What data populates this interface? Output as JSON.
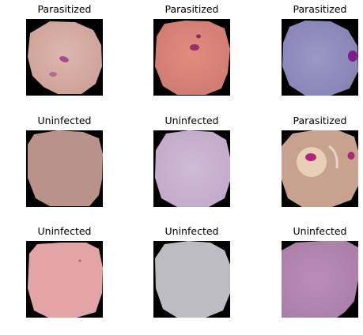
{
  "panels": [
    {
      "title": "Parasitized"
    },
    {
      "title": "Parasitized"
    },
    {
      "title": "Parasitized"
    },
    {
      "title": "Uninfected"
    },
    {
      "title": "Uninfected"
    },
    {
      "title": "Parasitized"
    },
    {
      "title": "Uninfected"
    },
    {
      "title": "Uninfected"
    },
    {
      "title": "Uninfected"
    }
  ]
}
